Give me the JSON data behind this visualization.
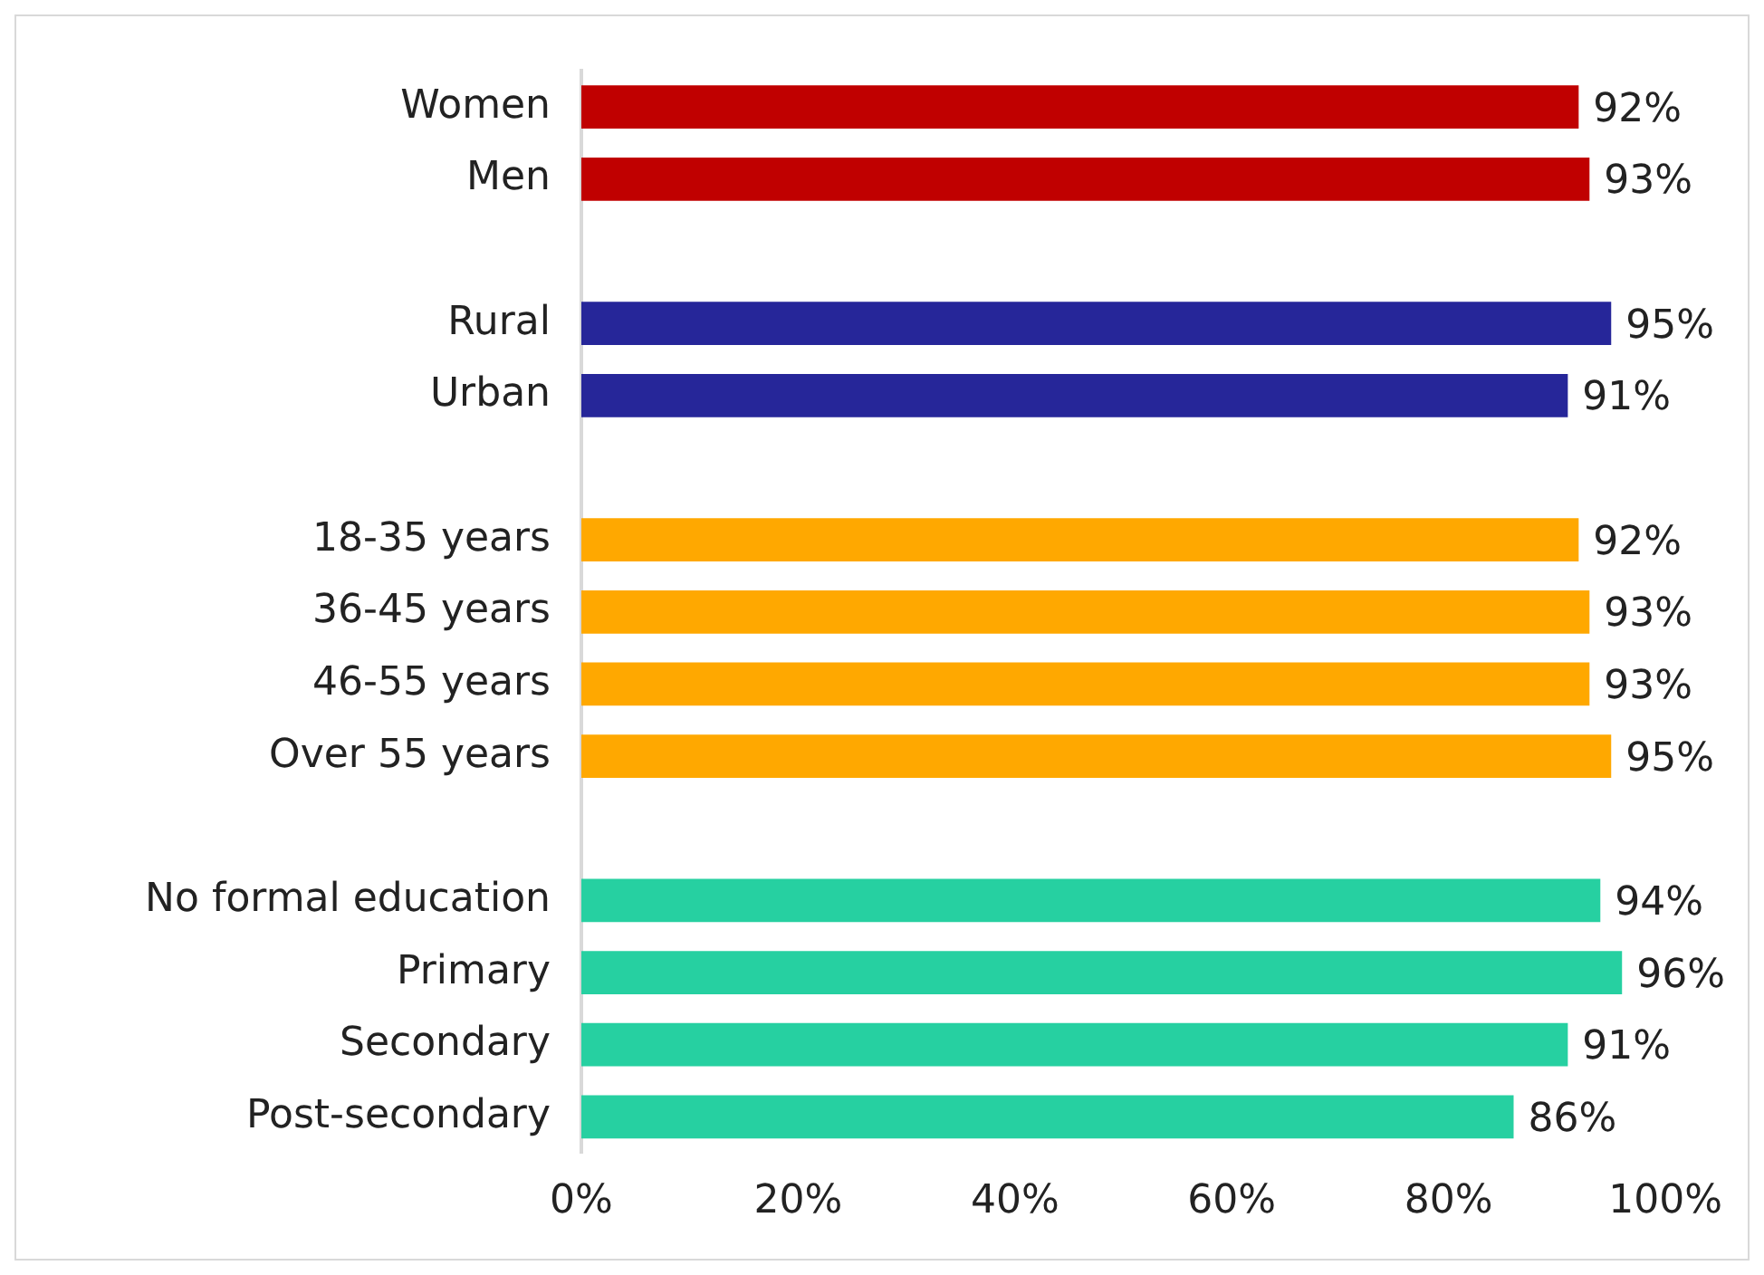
{
  "chart_data": {
    "type": "bar",
    "orientation": "horizontal",
    "categories": [
      "Women",
      "Men",
      null,
      "Rural",
      "Urban",
      null,
      "18-35 years",
      "36-45 years",
      "46-55 years",
      "Over 55 years",
      null,
      "No formal education",
      "Primary",
      "Secondary",
      "Post-secondary"
    ],
    "values": [
      92,
      93,
      null,
      95,
      91,
      null,
      92,
      93,
      93,
      95,
      null,
      94,
      96,
      91,
      86
    ],
    "colors": [
      "#c00000",
      "#c00000",
      null,
      "#262699",
      "#262699",
      null,
      "#ffa800",
      "#ffa800",
      "#ffa800",
      "#ffa800",
      null,
      "#26d0a1",
      "#26d0a1",
      "#26d0a1",
      "#26d0a1"
    ],
    "value_labels": [
      "92%",
      "93%",
      null,
      "95%",
      "91%",
      null,
      "92%",
      "93%",
      "93%",
      "95%",
      null,
      "94%",
      "96%",
      "91%",
      "86%"
    ],
    "xlim": [
      0,
      100
    ],
    "xticks": [
      {
        "value": 0,
        "label": "0%"
      },
      {
        "value": 20,
        "label": "20%"
      },
      {
        "value": 40,
        "label": "40%"
      },
      {
        "value": 60,
        "label": "60%"
      },
      {
        "value": 80,
        "label": "80%"
      },
      {
        "value": 100,
        "label": "100%"
      }
    ],
    "grid": false,
    "legend": false
  }
}
